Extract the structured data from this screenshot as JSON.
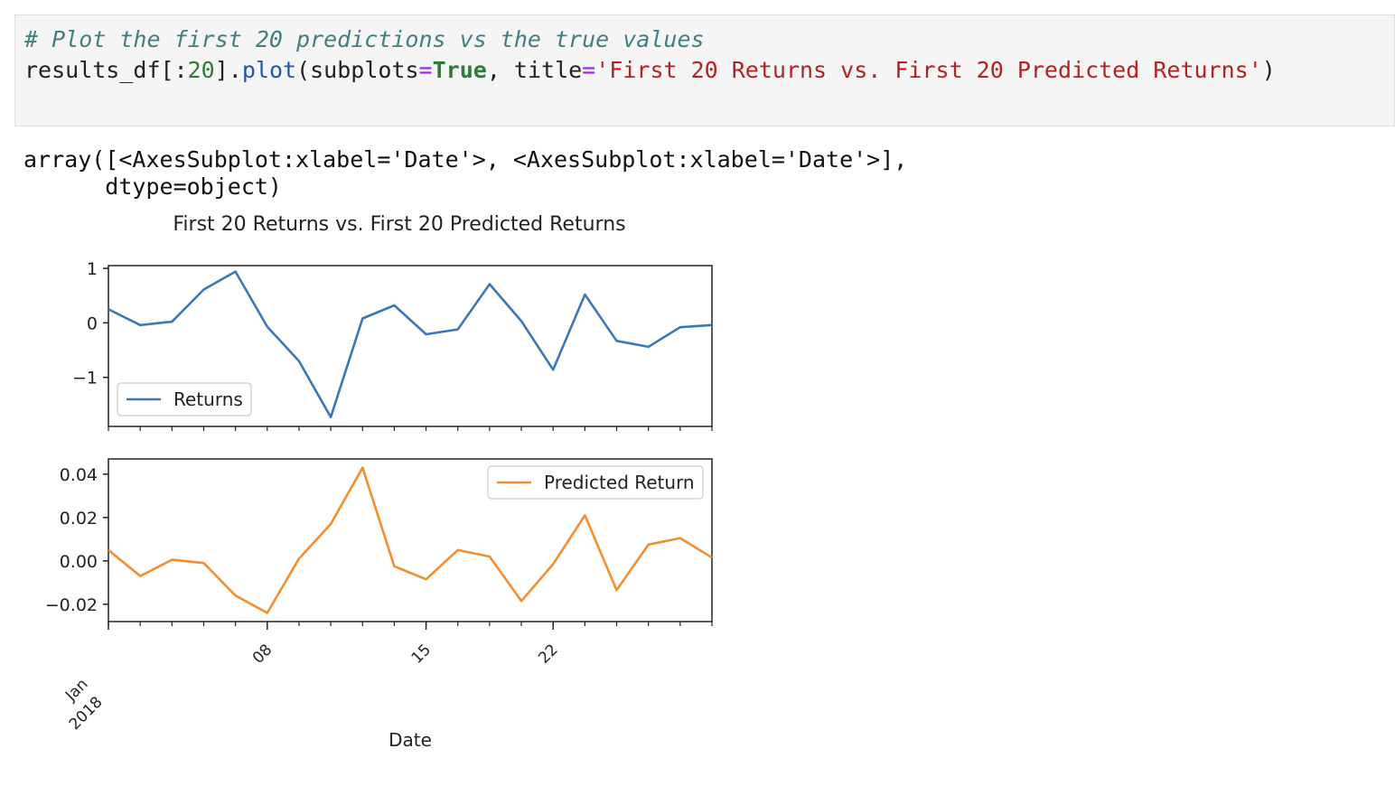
{
  "code_cell": {
    "line1_comment": "# Plot the first 20 predictions vs the true values",
    "line2": {
      "obj": "results_df[:",
      "num": "20",
      "mid": "].",
      "func": "plot",
      "args1": "(subplots",
      "eq1": "=",
      "kw": "True",
      "args2": ", title",
      "eq2": "=",
      "str": "'First 20 Returns vs. First 20 Predicted Returns'",
      "end": ")"
    }
  },
  "output": {
    "line1": "array([<AxesSubplot:xlabel='Date'>, <AxesSubplot:xlabel='Date'>],",
    "line2": "      dtype=object)"
  },
  "chart_data": {
    "type": "line",
    "title": "First 20 Returns vs. First 20 Predicted Returns",
    "xlabel": "Date",
    "x": [
      "2018-01-01",
      "2018-01-02",
      "2018-01-03",
      "2018-01-04",
      "2018-01-05",
      "2018-01-08",
      "2018-01-09",
      "2018-01-10",
      "2018-01-11",
      "2018-01-12",
      "2018-01-16",
      "2018-01-17",
      "2018-01-18",
      "2018-01-19",
      "2018-01-22",
      "2018-01-23",
      "2018-01-24",
      "2018-01-25",
      "2018-01-26",
      "2018-01-29"
    ],
    "x_ticks": [
      {
        "major": "Jan",
        "minor": "2018"
      },
      {
        "label": "08"
      },
      {
        "label": "15"
      },
      {
        "label": "22"
      }
    ],
    "subplots": [
      {
        "legend": "Returns",
        "legend_loc": "lower-left",
        "color": "#3a78b5",
        "ylim": [
          -1.9,
          1.05
        ],
        "yticks": [
          1,
          0,
          -1
        ],
        "ytick_labels": [
          "1",
          "0",
          "−1"
        ],
        "values": [
          0.25,
          -0.04,
          0.02,
          0.61,
          0.94,
          -0.07,
          -0.7,
          -1.73,
          0.08,
          0.32,
          -0.21,
          -0.12,
          0.71,
          0.03,
          -0.86,
          0.52,
          -0.33,
          -0.44,
          -0.08,
          -0.04
        ]
      },
      {
        "legend": "Predicted Return",
        "legend_loc": "top-right",
        "color": "#f28e2b",
        "ylim": [
          -0.028,
          0.047
        ],
        "yticks": [
          0.04,
          0.02,
          0.0,
          -0.02
        ],
        "ytick_labels": [
          "0.04",
          "0.02",
          "0.00",
          "−0.02"
        ],
        "values": [
          0.005,
          -0.007,
          0.0005,
          -0.001,
          -0.016,
          -0.024,
          0.001,
          0.017,
          0.043,
          -0.0025,
          -0.0085,
          0.005,
          0.002,
          -0.0185,
          -0.0015,
          0.021,
          -0.0135,
          0.0075,
          0.0105,
          0.0015
        ]
      }
    ]
  }
}
